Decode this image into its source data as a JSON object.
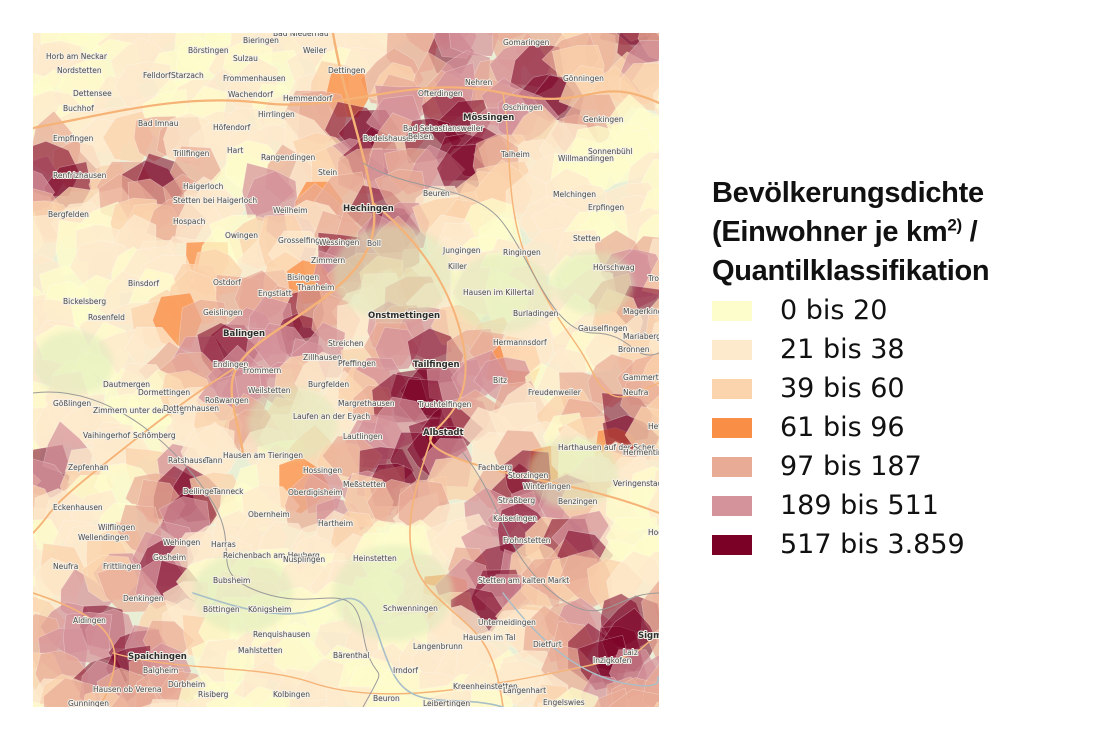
{
  "legend": {
    "title_line1": "Bevölkerungsdichte",
    "title_line2_pre": "(Einwohner je km",
    "title_line2_sup": "2)",
    "title_line2_post": " /",
    "title_line3": "Quantilklassifikation",
    "classes": [
      {
        "label": "0 bis 20",
        "color": "#fdfccb"
      },
      {
        "label": "21 bis 38",
        "color": "#fde9cc"
      },
      {
        "label": "39 bis 60",
        "color": "#fbd3ac"
      },
      {
        "label": "61 bis 96",
        "color": "#f98e46"
      },
      {
        "label": "97 bis 187",
        "color": "#e8ab96"
      },
      {
        "label": "189 bis 511",
        "color": "#d4929a"
      },
      {
        "label": "517 bis 3.859",
        "color": "#7c0126"
      }
    ]
  },
  "map": {
    "background_color": "#e9efd4",
    "road_color": "#f5b377",
    "river_color": "#a8bfc8",
    "places": [
      {
        "name": "Bieringen"
      },
      {
        "name": "Bad Niedernau"
      },
      {
        "name": "Gomaringen"
      },
      {
        "name": "Horb am Neckar"
      },
      {
        "name": "Börstingen"
      },
      {
        "name": "Sulzau"
      },
      {
        "name": "Weiler"
      },
      {
        "name": "Nordstetten"
      },
      {
        "name": "Felldorf"
      },
      {
        "name": "Starzach"
      },
      {
        "name": "Frommenhausen"
      },
      {
        "name": "Dettingen"
      },
      {
        "name": "Nehren"
      },
      {
        "name": "Gönningen"
      },
      {
        "name": "Dettensee"
      },
      {
        "name": "Wachendorf"
      },
      {
        "name": "Hemmendorf"
      },
      {
        "name": "Ofterdingen"
      },
      {
        "name": "Buchhof"
      },
      {
        "name": "Oschingen"
      },
      {
        "name": "Bad Imnau"
      },
      {
        "name": "Höfendorf"
      },
      {
        "name": "Hirrlingen"
      },
      {
        "name": "Bad Sebastiansweiler"
      },
      {
        "name": "Mössingen"
      },
      {
        "name": "Genkingen"
      },
      {
        "name": "Empfingen"
      },
      {
        "name": "Hechingen"
      },
      {
        "name": "Bodelshausen"
      },
      {
        "name": "Belsen"
      },
      {
        "name": "Trillfingen"
      },
      {
        "name": "Hart"
      },
      {
        "name": "Rangendingen"
      },
      {
        "name": "Talheim"
      },
      {
        "name": "Willmandingen"
      },
      {
        "name": "Sonnenbühl"
      },
      {
        "name": "Renfrizhausen"
      },
      {
        "name": "Stein"
      },
      {
        "name": "Haigerloch"
      },
      {
        "name": "Beuren"
      },
      {
        "name": "Melchingen"
      },
      {
        "name": "Erpfingen"
      },
      {
        "name": "Stetten bei Haigerloch"
      },
      {
        "name": "Weilheim"
      },
      {
        "name": "Bergfelden"
      },
      {
        "name": "Hospach"
      },
      {
        "name": "Owingen"
      },
      {
        "name": "Grosselfingen"
      },
      {
        "name": "Wessingen"
      },
      {
        "name": "Boll"
      },
      {
        "name": "Jungingen"
      },
      {
        "name": "Ringingen"
      },
      {
        "name": "Stetten"
      },
      {
        "name": "Zimmern"
      },
      {
        "name": "Killer"
      },
      {
        "name": "Hörschwag"
      },
      {
        "name": "Bisingen"
      },
      {
        "name": "Thanheim"
      },
      {
        "name": "Binsdorf"
      },
      {
        "name": "Ostdorf"
      },
      {
        "name": "Engstlatt"
      },
      {
        "name": "Hausen im Killertal"
      },
      {
        "name": "Trochtelfingen"
      },
      {
        "name": "Bickelsberg"
      },
      {
        "name": "Geislingen"
      },
      {
        "name": "Onstmettingen"
      },
      {
        "name": "Burladingen"
      },
      {
        "name": "Magerkingen"
      },
      {
        "name": "Rosenfeld"
      },
      {
        "name": "Balingen"
      },
      {
        "name": "Streichen"
      },
      {
        "name": "Hermannsdorf"
      },
      {
        "name": "Gauselfingen"
      },
      {
        "name": "Mariaberg"
      },
      {
        "name": "Bronnen"
      },
      {
        "name": "Endingen"
      },
      {
        "name": "Zillhausen"
      },
      {
        "name": "Pfeffingen"
      },
      {
        "name": "Tailfingen"
      },
      {
        "name": "Frommern"
      },
      {
        "name": "Bitz"
      },
      {
        "name": "Gammertingen"
      },
      {
        "name": "Dautmergen"
      },
      {
        "name": "Burgfelden"
      },
      {
        "name": "Freudenweiler"
      },
      {
        "name": "Neufra"
      },
      {
        "name": "Dormettingen"
      },
      {
        "name": "Weilstetten"
      },
      {
        "name": "Gößlingen"
      },
      {
        "name": "Roßwangen"
      },
      {
        "name": "Margrethausen"
      },
      {
        "name": "Truchtelfingen"
      },
      {
        "name": "Zimmern unter der Burg"
      },
      {
        "name": "Dotternhausen"
      },
      {
        "name": "Laufen an der Eyach"
      },
      {
        "name": "Vaihingerhof"
      },
      {
        "name": "Schömberg"
      },
      {
        "name": "Lautlingen"
      },
      {
        "name": "Albstadt"
      },
      {
        "name": "Hettingen"
      },
      {
        "name": "Harthausen auf der Scher"
      },
      {
        "name": "Hermentingen"
      },
      {
        "name": "Hausen am Tieringen"
      },
      {
        "name": "Ratshausen"
      },
      {
        "name": "Tann"
      },
      {
        "name": "Zepfenhan"
      },
      {
        "name": "Hossingen"
      },
      {
        "name": "Fachberg"
      },
      {
        "name": "Storzingen"
      },
      {
        "name": "Veringenstadt"
      },
      {
        "name": "Meßstetten"
      },
      {
        "name": "Deilingen"
      },
      {
        "name": "Tanneck"
      },
      {
        "name": "Oberdigisheim"
      },
      {
        "name": "Winterlingen"
      },
      {
        "name": "Straßberg"
      },
      {
        "name": "Benzingen"
      },
      {
        "name": "Obernheim"
      },
      {
        "name": "Eckenhausen"
      },
      {
        "name": "Hartheim"
      },
      {
        "name": "Kaiseringen"
      },
      {
        "name": "Wilflingen"
      },
      {
        "name": "Wellendingen"
      },
      {
        "name": "Wehingen"
      },
      {
        "name": "Harras"
      },
      {
        "name": "Frohnstetten"
      },
      {
        "name": "Hochberg"
      },
      {
        "name": "Gosheim"
      },
      {
        "name": "Reichenbach am Heuberg"
      },
      {
        "name": "Heinstetten"
      },
      {
        "name": "Nusplingen"
      },
      {
        "name": "Neufra"
      },
      {
        "name": "Frittlingen"
      },
      {
        "name": "Bubsheim"
      },
      {
        "name": "Stetten am kalten Markt"
      },
      {
        "name": "Denkingen"
      },
      {
        "name": "Schwenningen"
      },
      {
        "name": "Böttingen"
      },
      {
        "name": "Königsheim"
      },
      {
        "name": "Unterneidingen"
      },
      {
        "name": "Aldingen"
      },
      {
        "name": "Renquishausen"
      },
      {
        "name": "Hausen im Tal"
      },
      {
        "name": "Sigmaringen"
      },
      {
        "name": "Spaichingen"
      },
      {
        "name": "Mahlstetten"
      },
      {
        "name": "Bärenthal"
      },
      {
        "name": "Langenbrunn"
      },
      {
        "name": "Dietfurt"
      },
      {
        "name": "Laiz"
      },
      {
        "name": "Inzigkofen"
      },
      {
        "name": "Balgheim"
      },
      {
        "name": "Irndorf"
      },
      {
        "name": "Dürbheim"
      },
      {
        "name": "Hausen ob Verena"
      },
      {
        "name": "Risiberg"
      },
      {
        "name": "Kolbingen"
      },
      {
        "name": "Beuron"
      },
      {
        "name": "Kreenheinstetten"
      },
      {
        "name": "Langenhart"
      },
      {
        "name": "Gunningen"
      },
      {
        "name": "Leibertingen"
      },
      {
        "name": "Engelswies"
      }
    ]
  }
}
